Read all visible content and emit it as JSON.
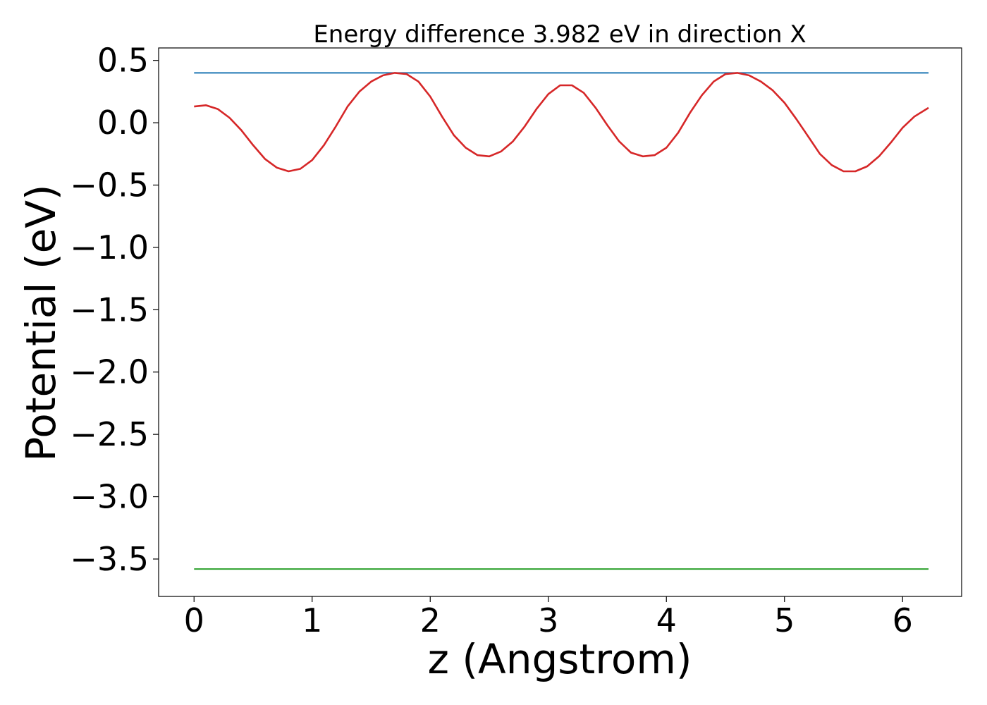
{
  "chart_data": {
    "type": "line",
    "title": "Energy difference 3.982 eV in direction X",
    "xlabel": "z (Angstrom)",
    "ylabel": "Potential (eV)",
    "xlim": [
      -0.3,
      6.5
    ],
    "ylim": [
      -3.8,
      0.6
    ],
    "xticks": [
      0,
      1,
      2,
      3,
      4,
      5,
      6
    ],
    "yticks": [
      0.5,
      0.0,
      -0.5,
      -1.0,
      -1.5,
      -2.0,
      -2.5,
      -3.0,
      -3.5
    ],
    "ytick_labels": [
      "0.5",
      "0.0",
      "−0.5",
      "−1.0",
      "−1.5",
      "−2.0",
      "−2.5",
      "−3.0",
      "−3.5"
    ],
    "xtick_labels": [
      "0",
      "1",
      "2",
      "3",
      "4",
      "5",
      "6"
    ],
    "grid": false,
    "series": [
      {
        "color": "#1f77b4",
        "x": [
          0.0,
          6.22
        ],
        "y": [
          0.4,
          0.4
        ]
      },
      {
        "color": "#d62728",
        "x": [
          0.0,
          0.1,
          0.2,
          0.3,
          0.4,
          0.5,
          0.6,
          0.7,
          0.8,
          0.9,
          1.0,
          1.1,
          1.2,
          1.3,
          1.4,
          1.5,
          1.6,
          1.7,
          1.8,
          1.9,
          2.0,
          2.1,
          2.2,
          2.3,
          2.4,
          2.5,
          2.6,
          2.7,
          2.8,
          2.9,
          3.0,
          3.1,
          3.2,
          3.3,
          3.4,
          3.5,
          3.6,
          3.7,
          3.8,
          3.9,
          4.0,
          4.1,
          4.2,
          4.3,
          4.4,
          4.5,
          4.6,
          4.7,
          4.8,
          4.9,
          5.0,
          5.1,
          5.2,
          5.3,
          5.4,
          5.5,
          5.6,
          5.7,
          5.8,
          5.9,
          6.0,
          6.1,
          6.22
        ],
        "y": [
          0.13,
          0.14,
          0.11,
          0.04,
          -0.06,
          -0.18,
          -0.29,
          -0.36,
          -0.39,
          -0.37,
          -0.3,
          -0.18,
          -0.03,
          0.13,
          0.25,
          0.33,
          0.38,
          0.4,
          0.39,
          0.33,
          0.21,
          0.05,
          -0.1,
          -0.2,
          -0.26,
          -0.27,
          -0.23,
          -0.15,
          -0.03,
          0.11,
          0.23,
          0.3,
          0.3,
          0.24,
          0.12,
          -0.02,
          -0.15,
          -0.24,
          -0.27,
          -0.26,
          -0.2,
          -0.08,
          0.08,
          0.22,
          0.33,
          0.39,
          0.4,
          0.38,
          0.33,
          0.26,
          0.16,
          0.03,
          -0.11,
          -0.25,
          -0.34,
          -0.39,
          -0.39,
          -0.35,
          -0.27,
          -0.16,
          -0.04,
          0.05,
          0.12
        ]
      },
      {
        "color": "#2ca02c",
        "x": [
          0.0,
          6.22
        ],
        "y": [
          -3.58,
          -3.58
        ]
      }
    ]
  }
}
